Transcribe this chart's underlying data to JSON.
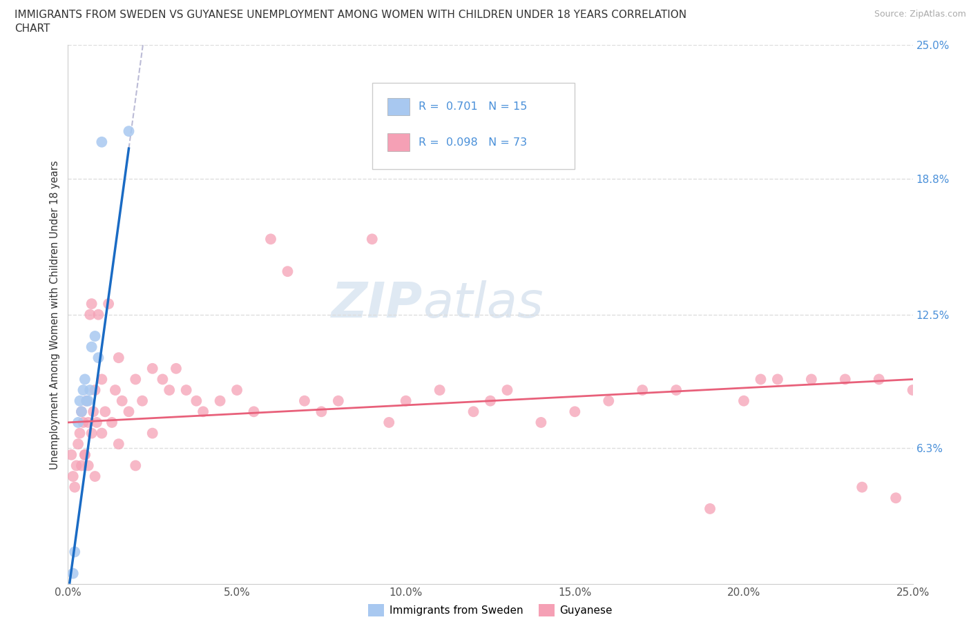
{
  "title_line1": "IMMIGRANTS FROM SWEDEN VS GUYANESE UNEMPLOYMENT AMONG WOMEN WITH CHILDREN UNDER 18 YEARS CORRELATION",
  "title_line2": "CHART",
  "source": "Source: ZipAtlas.com",
  "ylabel": "Unemployment Among Women with Children Under 18 years",
  "xlim": [
    0,
    25
  ],
  "ylim": [
    0,
    25
  ],
  "xticklabels": [
    "0.0%",
    "5.0%",
    "10.0%",
    "15.0%",
    "20.0%",
    "25.0%"
  ],
  "xtick_vals": [
    0,
    5,
    10,
    15,
    20,
    25
  ],
  "yticks_right": [
    6.3,
    12.5,
    18.8,
    25.0
  ],
  "ytick_labels_right": [
    "6.3%",
    "12.5%",
    "18.8%",
    "25.0%"
  ],
  "sweden_R": 0.701,
  "sweden_N": 15,
  "guyanese_R": 0.098,
  "guyanese_N": 73,
  "sweden_color": "#a8c8f0",
  "sweden_line_color": "#1a6bc4",
  "guyanese_color": "#f5a0b5",
  "guyanese_line_color": "#e8607a",
  "background_color": "#ffffff",
  "watermark_zip": "ZIP",
  "watermark_atlas": "atlas",
  "grid_color": "#dddddd",
  "sweden_x": [
    0.15,
    0.2,
    0.3,
    0.35,
    0.4,
    0.45,
    0.5,
    0.55,
    0.6,
    0.65,
    0.7,
    0.8,
    0.9,
    1.0,
    1.8
  ],
  "sweden_y": [
    0.5,
    1.5,
    7.5,
    8.5,
    8.0,
    9.0,
    9.5,
    8.5,
    8.5,
    9.0,
    11.0,
    11.5,
    10.5,
    20.5,
    21.0
  ],
  "guyanese_x": [
    0.1,
    0.15,
    0.2,
    0.25,
    0.3,
    0.35,
    0.4,
    0.45,
    0.5,
    0.55,
    0.6,
    0.65,
    0.7,
    0.75,
    0.8,
    0.85,
    0.9,
    1.0,
    1.1,
    1.2,
    1.3,
    1.4,
    1.5,
    1.6,
    1.8,
    2.0,
    2.2,
    2.5,
    2.8,
    3.0,
    3.2,
    3.5,
    3.8,
    4.0,
    4.5,
    5.0,
    5.5,
    6.0,
    6.5,
    7.0,
    7.5,
    8.0,
    9.0,
    9.5,
    10.0,
    11.0,
    12.0,
    12.5,
    13.0,
    14.0,
    15.0,
    16.0,
    17.0,
    18.0,
    19.0,
    20.0,
    20.5,
    21.0,
    22.0,
    23.0,
    23.5,
    24.0,
    24.5,
    25.0,
    0.4,
    0.5,
    0.6,
    0.7,
    0.8,
    1.0,
    1.5,
    2.0,
    2.5
  ],
  "guyanese_y": [
    6.0,
    5.0,
    4.5,
    5.5,
    6.5,
    7.0,
    8.0,
    7.5,
    6.0,
    8.5,
    7.5,
    12.5,
    13.0,
    8.0,
    9.0,
    7.5,
    12.5,
    9.5,
    8.0,
    13.0,
    7.5,
    9.0,
    10.5,
    8.5,
    8.0,
    9.5,
    8.5,
    10.0,
    9.5,
    9.0,
    10.0,
    9.0,
    8.5,
    8.0,
    8.5,
    9.0,
    8.0,
    16.0,
    14.5,
    8.5,
    8.0,
    8.5,
    16.0,
    7.5,
    8.5,
    9.0,
    8.0,
    8.5,
    9.0,
    7.5,
    8.0,
    8.5,
    9.0,
    9.0,
    3.5,
    8.5,
    9.5,
    9.5,
    9.5,
    9.5,
    4.5,
    9.5,
    4.0,
    9.0,
    5.5,
    6.0,
    5.5,
    7.0,
    5.0,
    7.0,
    6.5,
    5.5,
    7.0
  ]
}
